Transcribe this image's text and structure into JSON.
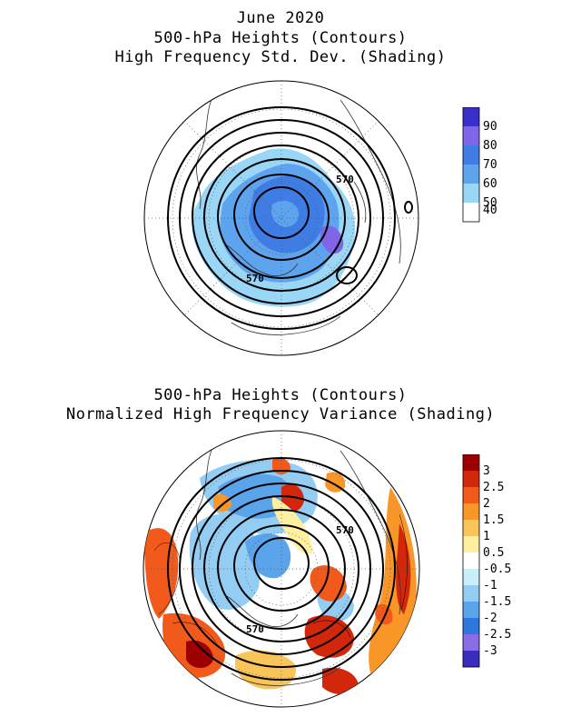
{
  "top_panel": {
    "title_line1": "June 2020",
    "title_line2": "500-hPa Heights (Contours)",
    "title_line3": "High Frequency Std. Dev. (Shading)",
    "contour_labels": [
      "570",
      "570"
    ],
    "colorbar": {
      "ticks": [
        "90",
        "80",
        "70",
        "60",
        "50",
        "40"
      ],
      "colors": [
        "#3a2fc8",
        "#8066e6",
        "#3f7de4",
        "#5ea3ee",
        "#9ad6f6",
        "#ffffff"
      ]
    }
  },
  "bottom_panel": {
    "title_line1": "500-hPa Heights (Contours)",
    "title_line2": "Normalized High Frequency Variance (Shading)",
    "contour_labels": [
      "570",
      "570"
    ],
    "colorbar": {
      "ticks": [
        "3",
        "2.5",
        "2",
        "1.5",
        "1",
        "0.5",
        "-0.5",
        "-1",
        "-1.5",
        "-2",
        "-2.5",
        "-3"
      ],
      "colors": [
        "#9c0000",
        "#d2270a",
        "#f25a1c",
        "#f89628",
        "#f9c458",
        "#fff0a0",
        "#ffffff",
        "#c9eefc",
        "#93cdf4",
        "#5aa4ec",
        "#2f77dc",
        "#8a6ce6",
        "#3a2cbc"
      ]
    }
  }
}
